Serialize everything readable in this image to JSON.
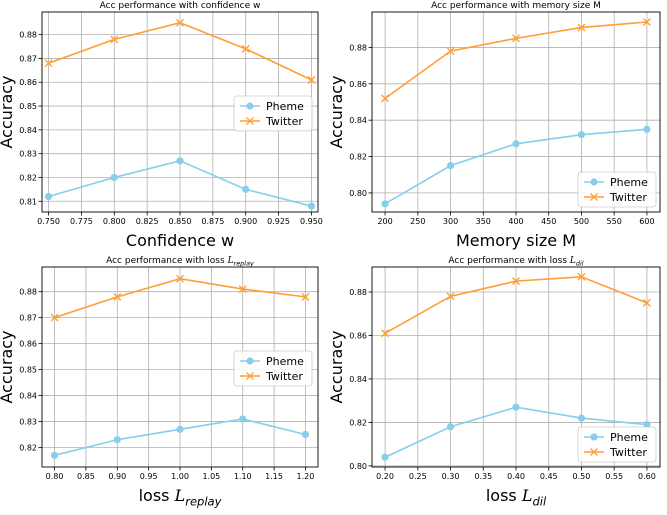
{
  "colors": {
    "pheme": "#87ceeb",
    "twitter": "#ff9f33",
    "grid": "#b0b0b0"
  },
  "chart_data": [
    {
      "type": "line",
      "title": "Acc performance with confidence w",
      "xlabel": "Confidence w",
      "xlabel_sub": "",
      "ylabel": "Accuracy",
      "x": [
        0.75,
        0.8,
        0.85,
        0.9,
        0.95
      ],
      "xlim": [
        0.745,
        0.955
      ],
      "ylim": [
        0.8055,
        0.8895
      ],
      "xticks": [
        0.75,
        0.775,
        0.8,
        0.825,
        0.85,
        0.875,
        0.9,
        0.925,
        0.95
      ],
      "xtick_labels": [
        "0.750",
        "0.775",
        "0.800",
        "0.825",
        "0.850",
        "0.875",
        "0.900",
        "0.925",
        "0.950"
      ],
      "yticks": [
        0.81,
        0.82,
        0.83,
        0.84,
        0.85,
        0.86,
        0.87,
        0.88
      ],
      "ytick_labels": [
        "0.81",
        "0.82",
        "0.83",
        "0.84",
        "0.85",
        "0.86",
        "0.87",
        "0.88"
      ],
      "legend_position": "center-right",
      "grid": true,
      "series": [
        {
          "name": "Pheme",
          "marker": "circle",
          "values": [
            0.812,
            0.82,
            0.827,
            0.815,
            0.808
          ]
        },
        {
          "name": "Twitter",
          "marker": "x",
          "values": [
            0.868,
            0.878,
            0.885,
            0.874,
            0.861
          ]
        }
      ]
    },
    {
      "type": "line",
      "title": "Acc performance with memory size M",
      "xlabel": "Memory size M",
      "xlabel_sub": "",
      "ylabel": "Accuracy",
      "x": [
        200,
        300,
        400,
        500,
        600
      ],
      "xlim": [
        180,
        620
      ],
      "ylim": [
        0.7895,
        0.8995
      ],
      "xticks": [
        200,
        250,
        300,
        350,
        400,
        450,
        500,
        550,
        600
      ],
      "xtick_labels": [
        "200",
        "250",
        "300",
        "350",
        "400",
        "450",
        "500",
        "550",
        "600"
      ],
      "yticks": [
        0.8,
        0.82,
        0.84,
        0.86,
        0.88
      ],
      "ytick_labels": [
        "0.80",
        "0.82",
        "0.84",
        "0.86",
        "0.88"
      ],
      "legend_position": "lower-right",
      "grid": true,
      "series": [
        {
          "name": "Pheme",
          "marker": "circle",
          "values": [
            0.794,
            0.815,
            0.827,
            0.832,
            0.835
          ]
        },
        {
          "name": "Twitter",
          "marker": "x",
          "values": [
            0.852,
            0.878,
            0.885,
            0.891,
            0.894
          ]
        }
      ]
    },
    {
      "type": "line",
      "title": "Acc performance with loss ",
      "title_math": "L",
      "title_sub": "replay",
      "xlabel": "loss ",
      "xlabel_math": "L",
      "xlabel_sub": "replay",
      "ylabel": "Accuracy",
      "x": [
        0.8,
        0.9,
        1.0,
        1.1,
        1.2
      ],
      "xlim": [
        0.78,
        1.22
      ],
      "ylim": [
        0.8125,
        0.8895
      ],
      "xticks": [
        0.8,
        0.85,
        0.9,
        0.95,
        1.0,
        1.05,
        1.1,
        1.15,
        1.2
      ],
      "xtick_labels": [
        "0.80",
        "0.85",
        "0.90",
        "0.95",
        "1.00",
        "1.05",
        "1.10",
        "1.15",
        "1.20"
      ],
      "yticks": [
        0.82,
        0.83,
        0.84,
        0.85,
        0.86,
        0.87,
        0.88
      ],
      "ytick_labels": [
        "0.82",
        "0.83",
        "0.84",
        "0.85",
        "0.86",
        "0.87",
        "0.88"
      ],
      "legend_position": "center-right",
      "grid": true,
      "series": [
        {
          "name": "Pheme",
          "marker": "circle",
          "values": [
            0.817,
            0.823,
            0.827,
            0.831,
            0.825
          ]
        },
        {
          "name": "Twitter",
          "marker": "x",
          "values": [
            0.87,
            0.878,
            0.885,
            0.881,
            0.878
          ]
        }
      ]
    },
    {
      "type": "line",
      "title": "Acc performance with loss ",
      "title_math": "L",
      "title_sub": "dil",
      "xlabel": "loss ",
      "xlabel_math": "L",
      "xlabel_sub": "dil",
      "ylabel": "Accuracy",
      "x": [
        0.2,
        0.3,
        0.4,
        0.5,
        0.6
      ],
      "xlim": [
        0.18,
        0.62
      ],
      "ylim": [
        0.7995,
        0.8915
      ],
      "xticks": [
        0.2,
        0.25,
        0.3,
        0.35,
        0.4,
        0.45,
        0.5,
        0.55,
        0.6
      ],
      "xtick_labels": [
        "0.20",
        "0.25",
        "0.30",
        "0.35",
        "0.40",
        "0.45",
        "0.50",
        "0.55",
        "0.60"
      ],
      "yticks": [
        0.8,
        0.82,
        0.84,
        0.86,
        0.88
      ],
      "ytick_labels": [
        "0.80",
        "0.82",
        "0.84",
        "0.86",
        "0.88"
      ],
      "legend_position": "lower-right",
      "grid": true,
      "series": [
        {
          "name": "Pheme",
          "marker": "circle",
          "values": [
            0.804,
            0.818,
            0.827,
            0.822,
            0.819
          ]
        },
        {
          "name": "Twitter",
          "marker": "x",
          "values": [
            0.861,
            0.878,
            0.885,
            0.887,
            0.875
          ]
        }
      ]
    }
  ]
}
